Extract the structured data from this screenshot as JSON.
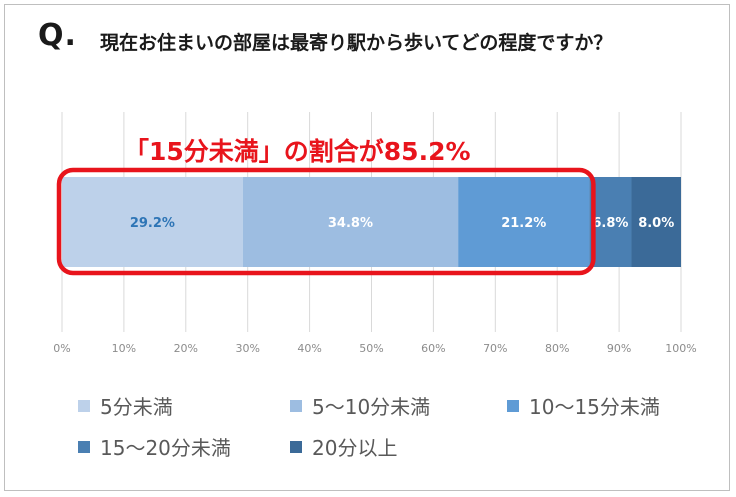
{
  "header": {
    "q_mark": "Q.",
    "question": "現在お住まいの部屋は最寄り駅から歩いてどの程度ですか？"
  },
  "callout": {
    "text": "「15分未満」の割合が85.2%",
    "color": "#e8141c"
  },
  "chart_data": {
    "type": "bar",
    "orientation": "horizontal-stacked-100",
    "categories": [
      ""
    ],
    "series": [
      {
        "name": "5分未満",
        "values": [
          29.2
        ],
        "label": "29.2%",
        "color": "#bdd1ea",
        "label_color": "#2e75b6"
      },
      {
        "name": "5〜10分未満",
        "values": [
          34.8
        ],
        "label": "34.8%",
        "color": "#9dbde1",
        "label_color": "#ffffff"
      },
      {
        "name": "10〜15分未満",
        "values": [
          21.2
        ],
        "label": "21.2%",
        "color": "#5f9bd5",
        "label_color": "#ffffff"
      },
      {
        "name": "15〜20分未満",
        "values": [
          6.8
        ],
        "label": "6.8%",
        "color": "#4a7fb2",
        "label_color": "#ffffff"
      },
      {
        "name": "20分以上",
        "values": [
          8.0
        ],
        "label": "8.0%",
        "color": "#3b6a98",
        "label_color": "#ffffff"
      }
    ],
    "xlim": [
      0,
      100
    ],
    "x_ticks": [
      "0%",
      "10%",
      "20%",
      "30%",
      "40%",
      "50%",
      "60%",
      "70%",
      "80%",
      "90%",
      "100%"
    ],
    "grid": true,
    "legend_position": "bottom",
    "highlight_range": [
      0,
      85.2
    ]
  }
}
